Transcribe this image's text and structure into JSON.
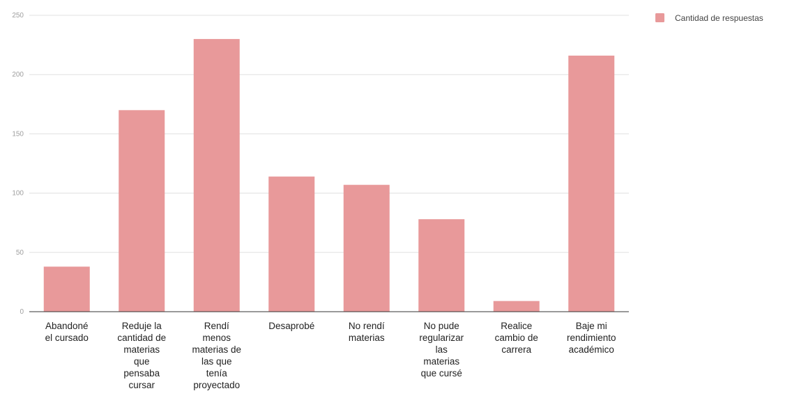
{
  "chart_data": {
    "type": "bar",
    "categories": [
      [
        "Abandoné",
        "el cursado"
      ],
      [
        "Reduje la",
        "cantidad de",
        "materias",
        "que",
        "pensaba",
        "cursar"
      ],
      [
        "Rendí",
        "menos",
        "materias de",
        "las que",
        "tenía",
        "proyectado"
      ],
      [
        "Desaprobé"
      ],
      [
        "No rendí",
        "materias"
      ],
      [
        "No pude",
        "regularizar",
        "las",
        "materias",
        "que cursé"
      ],
      [
        "Realice",
        "cambio de",
        "carrera"
      ],
      [
        "Baje mi",
        "rendimiento",
        "académico"
      ]
    ],
    "series": [
      {
        "name": "Cantidad de respuestas",
        "values": [
          38,
          170,
          230,
          114,
          107,
          78,
          9,
          216
        ],
        "color": "#e8999a"
      }
    ],
    "yticks": [
      0,
      50,
      100,
      150,
      200,
      250
    ],
    "ylim": [
      0,
      250
    ],
    "grid": true,
    "legend": "top-right"
  }
}
